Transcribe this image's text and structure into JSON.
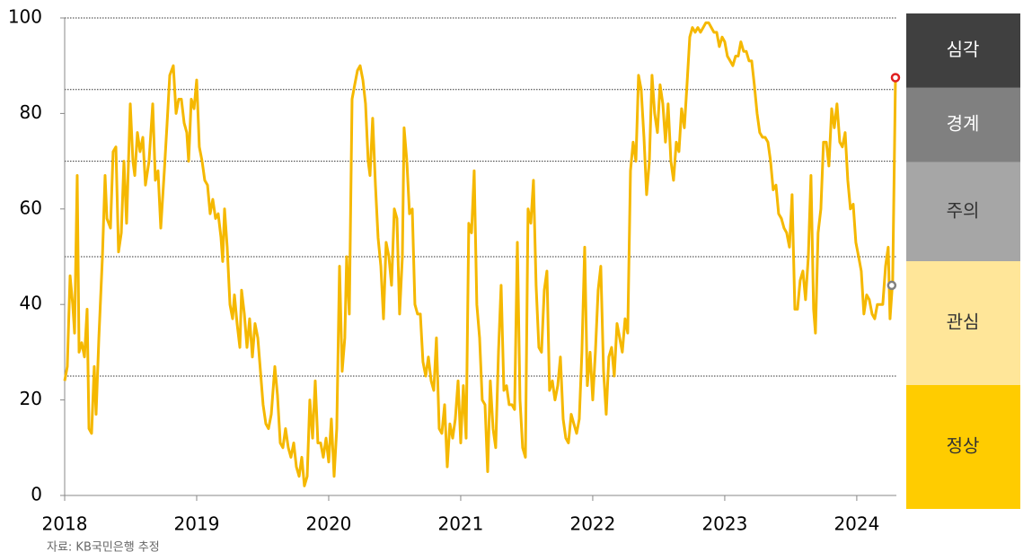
{
  "chart_data": {
    "type": "line",
    "source": "자료: KB국민은행 추정",
    "color": "#f5b800",
    "xlim": [
      2018,
      2024.3
    ],
    "xticks": [
      2018,
      2019,
      2020,
      2021,
      2022,
      2023,
      2024
    ],
    "ylim": [
      0,
      100
    ],
    "yticks": [
      0,
      20,
      40,
      60,
      80,
      100
    ],
    "zones": [
      {
        "label": "정상",
        "from": 0,
        "to": 25,
        "color": "#ffcc00",
        "text_color": "#333333"
      },
      {
        "label": "관심",
        "from": 25,
        "to": 50,
        "color": "#ffe699",
        "text_color": "#333333"
      },
      {
        "label": "주의",
        "from": 50,
        "to": 70,
        "color": "#a6a6a6",
        "text_color": "#333333"
      },
      {
        "label": "경계",
        "from": 70,
        "to": 85,
        "color": "#808080",
        "text_color": "#ffffff"
      },
      {
        "label": "심각",
        "from": 85,
        "to": 100,
        "color": "#404040",
        "text_color": "#ffffff"
      }
    ],
    "markers": [
      {
        "x": 2024.293,
        "value": 87.5,
        "color": "#e02020"
      },
      {
        "x": 2024.265,
        "value": 44,
        "color": "#808080"
      }
    ],
    "x": [
      2018.0,
      2018.02,
      2018.041,
      2018.061,
      2018.075,
      2018.095,
      2018.109,
      2018.129,
      2018.15,
      2018.17,
      2018.184,
      2018.204,
      2018.224,
      2018.238,
      2018.259,
      2018.286,
      2018.306,
      2018.32,
      2018.347,
      2018.367,
      2018.388,
      2018.408,
      2018.429,
      2018.449,
      2018.469,
      2018.497,
      2018.517,
      2018.531,
      2018.551,
      2018.571,
      2018.592,
      2018.612,
      2018.639,
      2018.667,
      2018.687,
      2018.707,
      2018.728,
      2018.755,
      2018.776,
      2018.796,
      2018.823,
      2018.844,
      2018.864,
      2018.884,
      2018.905,
      2018.925,
      2018.939,
      2018.959,
      2018.98,
      2019.0,
      2019.02,
      2019.041,
      2019.061,
      2019.082,
      2019.102,
      2019.122,
      2019.143,
      2019.163,
      2019.184,
      2019.197,
      2019.211,
      2019.231,
      2019.252,
      2019.272,
      2019.286,
      2019.306,
      2019.327,
      2019.34,
      2019.361,
      2019.381,
      2019.401,
      2019.422,
      2019.442,
      2019.463,
      2019.483,
      2019.503,
      2019.524,
      2019.544,
      2019.565,
      2019.592,
      2019.612,
      2019.633,
      2019.653,
      2019.673,
      2019.694,
      2019.714,
      2019.735,
      2019.755,
      2019.776,
      2019.796,
      2019.816,
      2019.837,
      2019.857,
      2019.878,
      2019.898,
      2019.918,
      2019.939,
      2019.959,
      2019.98,
      2020.0,
      2020.02,
      2020.041,
      2020.061,
      2020.082,
      2020.102,
      2020.122,
      2020.136,
      2020.156,
      2020.177,
      2020.197,
      2020.218,
      2020.238,
      2020.259,
      2020.279,
      2020.299,
      2020.313,
      2020.333,
      2020.354,
      2020.374,
      2020.395,
      2020.415,
      2020.435,
      2020.456,
      2020.476,
      2020.497,
      2020.517,
      2020.537,
      2020.558,
      2020.571,
      2020.592,
      2020.612,
      2020.633,
      2020.653,
      2020.673,
      2020.694,
      2020.714,
      2020.735,
      2020.755,
      2020.776,
      2020.796,
      2020.816,
      2020.837,
      2020.857,
      2020.878,
      2020.898,
      2020.918,
      2020.939,
      2020.959,
      2020.98,
      2021.0,
      2021.02,
      2021.041,
      2021.061,
      2021.082,
      2021.102,
      2021.122,
      2021.143,
      2021.163,
      2021.184,
      2021.204,
      2021.224,
      2021.245,
      2021.265,
      2021.286,
      2021.306,
      2021.327,
      2021.347,
      2021.367,
      2021.388,
      2021.408,
      2021.429,
      2021.449,
      2021.469,
      2021.49,
      2021.51,
      2021.531,
      2021.551,
      2021.571,
      2021.592,
      2021.612,
      2021.633,
      2021.653,
      2021.673,
      2021.694,
      2021.714,
      2021.735,
      2021.755,
      2021.776,
      2021.796,
      2021.816,
      2021.837,
      2021.857,
      2021.878,
      2021.898,
      2021.918,
      2021.939,
      2021.959,
      2021.98,
      2022.0,
      2022.02,
      2022.041,
      2022.061,
      2022.082,
      2022.102,
      2022.122,
      2022.143,
      2022.163,
      2022.184,
      2022.204,
      2022.224,
      2022.245,
      2022.265,
      2022.286,
      2022.306,
      2022.327,
      2022.347,
      2022.367,
      2022.388,
      2022.408,
      2022.429,
      2022.449,
      2022.469,
      2022.49,
      2022.51,
      2022.531,
      2022.551,
      2022.571,
      2022.592,
      2022.612,
      2022.633,
      2022.653,
      2022.673,
      2022.694,
      2022.714,
      2022.735,
      2022.755,
      2022.776,
      2022.796,
      2022.816,
      2022.837,
      2022.857,
      2022.878,
      2022.898,
      2022.918,
      2022.939,
      2022.959,
      2022.98,
      2023.0,
      2023.02,
      2023.041,
      2023.061,
      2023.082,
      2023.102,
      2023.122,
      2023.143,
      2023.163,
      2023.184,
      2023.204,
      2023.224,
      2023.245,
      2023.265,
      2023.286,
      2023.306,
      2023.327,
      2023.347,
      2023.367,
      2023.388,
      2023.408,
      2023.429,
      2023.449,
      2023.469,
      2023.49,
      2023.51,
      2023.531,
      2023.551,
      2023.571,
      2023.592,
      2023.612,
      2023.633,
      2023.653,
      2023.673,
      2023.687,
      2023.707,
      2023.728,
      2023.748,
      2023.769,
      2023.789,
      2023.81,
      2023.83,
      2023.85,
      2023.871,
      2023.891,
      2023.912,
      2023.932,
      2023.952,
      2023.973,
      2023.993,
      2024.014,
      2024.034,
      2024.054,
      2024.075,
      2024.095,
      2024.116,
      2024.136,
      2024.156,
      2024.177,
      2024.197,
      2024.218,
      2024.238,
      2024.252,
      2024.272,
      2024.293
    ],
    "values": [
      24,
      27,
      46,
      40,
      34,
      67,
      30,
      32,
      29,
      39,
      14,
      13,
      27,
      17,
      33,
      50,
      67,
      58,
      56,
      72,
      73,
      51,
      55,
      70,
      57,
      82,
      70,
      67,
      76,
      72,
      75,
      65,
      70,
      82,
      66,
      68,
      56,
      68,
      78,
      88,
      90,
      80,
      83,
      83,
      78,
      76,
      70,
      83,
      81,
      87,
      73,
      70,
      66,
      65,
      59,
      62,
      58,
      59,
      54,
      49,
      60,
      52,
      40,
      37,
      42,
      36,
      31,
      43,
      38,
      31,
      37,
      29,
      36,
      33,
      26,
      19,
      15,
      14,
      17,
      27,
      21,
      11,
      10,
      14,
      10,
      8,
      11,
      6,
      4,
      8,
      2,
      4,
      20,
      12,
      24,
      11,
      11,
      8,
      12,
      7,
      16,
      4,
      14,
      48,
      26,
      33,
      50,
      38,
      83,
      86,
      89,
      90,
      87,
      82,
      70,
      67,
      79,
      65,
      54,
      48,
      37,
      53,
      50,
      44,
      60,
      58,
      38,
      50,
      77,
      70,
      59,
      60,
      40,
      38,
      38,
      28,
      25,
      29,
      24,
      22,
      33,
      14,
      13,
      19,
      6,
      15,
      12,
      16,
      24,
      11,
      23,
      12,
      57,
      55,
      68,
      40,
      33,
      20,
      19,
      5,
      24,
      14,
      10,
      30,
      44,
      22,
      23,
      19,
      19,
      18,
      53,
      20,
      10,
      8,
      60,
      57,
      66,
      44,
      31,
      30,
      43,
      47,
      22,
      24,
      20,
      23,
      29,
      16,
      12,
      11,
      17,
      15,
      13,
      16,
      30,
      52,
      23,
      30,
      20,
      30,
      43,
      48,
      26,
      17,
      29,
      31,
      25,
      36,
      33,
      30,
      37,
      34,
      68,
      74,
      70,
      88,
      85,
      75,
      63,
      70,
      88,
      80,
      76,
      86,
      82,
      74,
      82,
      70,
      66,
      74,
      72,
      81,
      77,
      86,
      96,
      98,
      97,
      98,
      97,
      98,
      99,
      99,
      98,
      97,
      97,
      94,
      96,
      95,
      92,
      91,
      90,
      92,
      92,
      95,
      93,
      93,
      91,
      91,
      86,
      80,
      76,
      75,
      75,
      74,
      70,
      64,
      65,
      59,
      58,
      56,
      55,
      52,
      63,
      39,
      39,
      45,
      47,
      41,
      50,
      67,
      39,
      34,
      55,
      60,
      74,
      74,
      69,
      81,
      77,
      82,
      74,
      73,
      76,
      66,
      60,
      61,
      53,
      50,
      47,
      38,
      42,
      41,
      38,
      37,
      40,
      40,
      40,
      48,
      52,
      37,
      45,
      87
    ]
  }
}
